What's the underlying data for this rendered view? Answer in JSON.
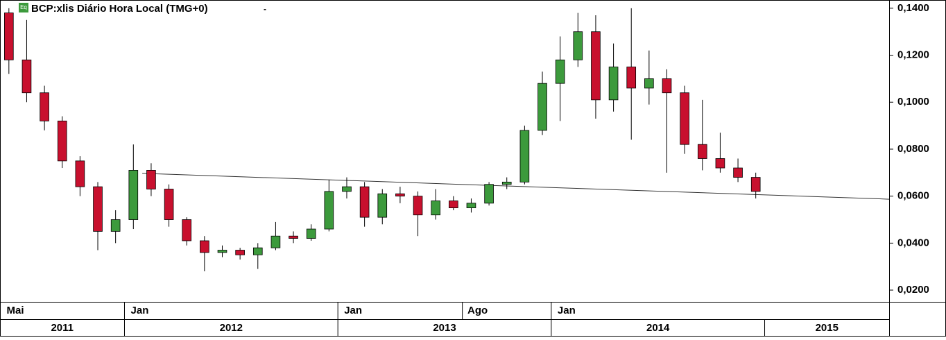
{
  "chart_data": {
    "type": "candlestick",
    "title": "BCP:xlis Diário Hora Local (TMG+0)",
    "icon_label": "Eq",
    "title_menu": "-",
    "x": [
      "2011-06",
      "2011-07",
      "2011-08",
      "2011-09",
      "2011-10",
      "2011-11",
      "2011-12",
      "2012-01",
      "2012-02",
      "2012-03",
      "2012-04",
      "2012-05",
      "2012-06",
      "2012-07",
      "2012-08",
      "2012-09",
      "2012-10",
      "2012-11",
      "2012-12",
      "2013-01",
      "2013-02",
      "2013-03",
      "2013-04",
      "2013-05",
      "2013-06",
      "2013-07",
      "2013-08",
      "2013-09",
      "2013-10",
      "2013-11",
      "2013-12",
      "2014-01",
      "2014-02",
      "2014-03",
      "2014-04",
      "2014-05",
      "2014-06",
      "2014-07",
      "2014-08",
      "2014-09",
      "2014-10",
      "2014-11",
      "2014-12"
    ],
    "open": [
      0.138,
      0.118,
      0.104,
      0.092,
      0.075,
      0.064,
      0.045,
      0.05,
      0.071,
      0.063,
      0.05,
      0.041,
      0.036,
      0.037,
      0.035,
      0.038,
      0.043,
      0.042,
      0.046,
      0.062,
      0.064,
      0.051,
      0.061,
      0.06,
      0.052,
      0.058,
      0.055,
      0.057,
      0.065,
      0.066,
      0.088,
      0.108,
      0.118,
      0.13,
      0.101,
      0.115,
      0.106,
      0.11,
      0.104,
      0.082,
      0.076,
      0.072,
      0.068
    ],
    "high": [
      0.14,
      0.135,
      0.107,
      0.094,
      0.077,
      0.066,
      0.054,
      0.082,
      0.074,
      0.065,
      0.051,
      0.043,
      0.039,
      0.038,
      0.04,
      0.049,
      0.045,
      0.048,
      0.067,
      0.068,
      0.066,
      0.063,
      0.064,
      0.062,
      0.063,
      0.06,
      0.059,
      0.066,
      0.068,
      0.09,
      0.113,
      0.128,
      0.138,
      0.137,
      0.125,
      0.14,
      0.122,
      0.114,
      0.107,
      0.101,
      0.087,
      0.076,
      0.07
    ],
    "low": [
      0.112,
      0.1,
      0.088,
      0.072,
      0.06,
      0.037,
      0.04,
      0.046,
      0.06,
      0.047,
      0.039,
      0.028,
      0.034,
      0.033,
      0.029,
      0.037,
      0.04,
      0.041,
      0.045,
      0.059,
      0.047,
      0.048,
      0.057,
      0.043,
      0.05,
      0.054,
      0.053,
      0.056,
      0.063,
      0.065,
      0.086,
      0.092,
      0.115,
      0.093,
      0.096,
      0.084,
      0.099,
      0.07,
      0.078,
      0.071,
      0.07,
      0.066,
      0.059
    ],
    "close": [
      0.118,
      0.104,
      0.092,
      0.075,
      0.064,
      0.045,
      0.05,
      0.071,
      0.063,
      0.05,
      0.041,
      0.036,
      0.037,
      0.035,
      0.038,
      0.043,
      0.042,
      0.046,
      0.062,
      0.064,
      0.051,
      0.061,
      0.06,
      0.052,
      0.058,
      0.055,
      0.057,
      0.065,
      0.066,
      0.088,
      0.108,
      0.118,
      0.13,
      0.101,
      0.115,
      0.106,
      0.11,
      0.104,
      0.082,
      0.076,
      0.072,
      0.068,
      0.062
    ],
    "up_color": "#3c9a3c",
    "down_color": "#c8102e",
    "trendline": {
      "x": [
        "2012-02",
        "2015-08"
      ],
      "y": [
        0.0697,
        0.0587
      ]
    },
    "xlim": [
      "2011-06",
      "2015-08"
    ],
    "ylim": [
      0.015,
      0.1435
    ],
    "yticks": [
      {
        "value": 0.14,
        "label": "0,1400"
      },
      {
        "value": 0.12,
        "label": "0,1200"
      },
      {
        "value": 0.1,
        "label": "0,1000"
      },
      {
        "value": 0.08,
        "label": "0,0800"
      },
      {
        "value": 0.06,
        "label": "0,0600"
      },
      {
        "value": 0.04,
        "label": "0,0400"
      },
      {
        "value": 0.02,
        "label": "0,0200"
      }
    ],
    "month_axis": [
      {
        "label": "Mai",
        "date": "2011-05"
      },
      {
        "label": "Jan",
        "date": "2012-01"
      },
      {
        "label": "Jan",
        "date": "2013-01"
      },
      {
        "label": "Ago",
        "date": "2013-08"
      },
      {
        "label": "Jan",
        "date": "2014-01"
      }
    ],
    "year_axis": [
      "2011",
      "2012",
      "2013",
      "2014",
      "2015"
    ],
    "grid": false
  }
}
